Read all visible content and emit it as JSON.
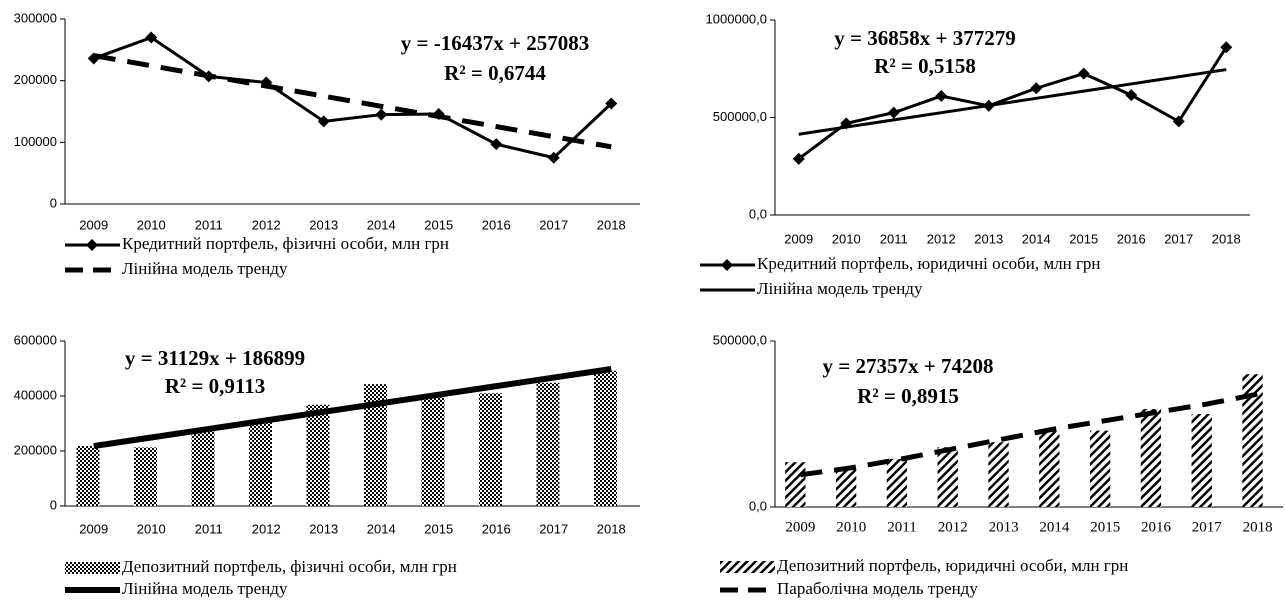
{
  "chart_data": [
    {
      "type": "line",
      "categories": [
        "2009",
        "2010",
        "2011",
        "2012",
        "2013",
        "2014",
        "2015",
        "2016",
        "2017",
        "2018"
      ],
      "ylim": [
        0,
        300000
      ],
      "yticks": [
        0,
        100000,
        200000,
        300000
      ],
      "annotations": [
        "y = -16437x + 257083",
        "R² = 0,6744"
      ],
      "series": [
        {
          "name": "Кредитний  портфель, фізичні особи, млн грн",
          "kind": "line",
          "marker": "diamond",
          "dash": false,
          "color": "#000000",
          "values": [
            236000,
            270000,
            207000,
            197000,
            134000,
            145000,
            146000,
            97000,
            75000,
            163000
          ]
        },
        {
          "name": "Лінійна модель тренду",
          "kind": "line",
          "marker": "none",
          "dash": true,
          "color": "#000000",
          "values": [
            240646,
            224209,
            207772,
            191335,
            174898,
            158461,
            142024,
            125587,
            109150,
            92713
          ]
        }
      ]
    },
    {
      "type": "line",
      "categories": [
        "2009",
        "2010",
        "2011",
        "2012",
        "2013",
        "2014",
        "2015",
        "2016",
        "2017",
        "2018"
      ],
      "ylim": [
        0,
        1000000
      ],
      "yticks": [
        {
          "value": 0,
          "label": "0,0"
        },
        {
          "value": 500000,
          "label": "500000,0"
        },
        {
          "value": 1000000,
          "label": "1000000,0"
        }
      ],
      "annotations": [
        "y = 36858x + 377279",
        "R² = 0,5158"
      ],
      "series": [
        {
          "name": "Кредитний портфель, юридичні особи, млн грн",
          "kind": "line",
          "marker": "diamond",
          "dash": false,
          "color": "#000000",
          "values": [
            288000,
            470000,
            525000,
            610000,
            560000,
            650000,
            725000,
            615000,
            480000,
            860000
          ]
        },
        {
          "name": "Лінійна модель тренду",
          "kind": "line",
          "marker": "none",
          "dash": false,
          "color": "#000000",
          "values": [
            414137,
            450995,
            487853,
            524711,
            561569,
            598427,
            635285,
            672143,
            709001,
            745859
          ]
        }
      ]
    },
    {
      "type": "bar",
      "categories": [
        "2009",
        "2010",
        "2011",
        "2012",
        "2013",
        "2014",
        "2015",
        "2016",
        "2017",
        "2018"
      ],
      "ylim": [
        0,
        600000
      ],
      "yticks": [
        0,
        200000,
        400000,
        600000
      ],
      "annotations": [
        "y = 31129x + 186899",
        "R² = 0,9113"
      ],
      "series": [
        {
          "name": "Депозитний портфель, фізичні особи, млн грн",
          "kind": "bar",
          "pattern": "dots",
          "color": "#000000",
          "values": [
            218000,
            213000,
            275000,
            305000,
            368000,
            443000,
            395000,
            410000,
            448000,
            492000
          ]
        },
        {
          "name": "Лінійна модель тренду",
          "kind": "line",
          "marker": "none",
          "dash": false,
          "color": "#000000",
          "values": [
            218028,
            249157,
            280286,
            311415,
            342544,
            373673,
            404802,
            435931,
            467060,
            498189
          ]
        }
      ]
    },
    {
      "type": "bar",
      "categories": [
        "2009",
        "2010",
        "2011",
        "2012",
        "2013",
        "2014",
        "2015",
        "2016",
        "2017",
        "2018"
      ],
      "ylim": [
        0,
        500000
      ],
      "yticks": [
        {
          "value": 0,
          "label": "0,0"
        },
        {
          "value": 500000,
          "label": "500000,0"
        }
      ],
      "annotations": [
        "y = 27357x + 74208",
        "R² = 0,8915"
      ],
      "series": [
        {
          "name": "Депозитний портфель, юридичні особи, млн грн",
          "kind": "bar",
          "pattern": "hatch",
          "color": "#000000",
          "values": [
            135000,
            115000,
            145000,
            180000,
            195000,
            228000,
            230000,
            295000,
            280000,
            400000
          ]
        },
        {
          "name": "Параболічна модель тренду",
          "kind": "line",
          "marker": "none",
          "dash": true,
          "color": "#000000",
          "values": [
            97000,
            118000,
            145000,
            175000,
            205000,
            235000,
            260000,
            285000,
            310000,
            340000
          ]
        }
      ]
    }
  ]
}
